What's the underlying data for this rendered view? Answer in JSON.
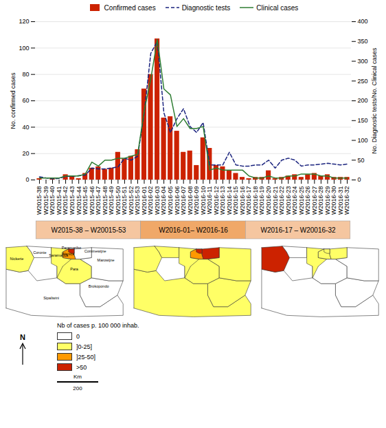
{
  "chart_data": [
    {
      "type": "bar",
      "categories": [
        "W2015-38",
        "W2015-39",
        "W2015-40",
        "W2015-41",
        "W2015-42",
        "W2015-43",
        "W2015-44",
        "W2015-45",
        "W2015-46",
        "W2015-47",
        "W2015-48",
        "W2015-49",
        "W2015-50",
        "W2015-51",
        "W2015-52",
        "W2015-53",
        "W2016-01",
        "W2016-02",
        "W2016-03",
        "W2016-04",
        "W2016-05",
        "W2016-06",
        "W2016-07",
        "W2016-08",
        "W2016-09",
        "W2016-10",
        "W2016-11",
        "W2016-12",
        "W2016-13",
        "W2016-14",
        "W2016-15",
        "W2016-16",
        "W2016-17",
        "W2016-18",
        "W2016-19",
        "W2016-20",
        "W2016-21",
        "W2016-22",
        "W2016-23",
        "W2016-24",
        "W2016-25",
        "W2016-26",
        "W2016-27",
        "W2016-28",
        "W2016-29",
        "W2016-30",
        "W2016-31",
        "W2016-32"
      ],
      "series": [
        {
          "name": "Confirmed cases",
          "type": "bar",
          "color": "#CC2200",
          "values": [
            1,
            0,
            1,
            0,
            4,
            3,
            1,
            5,
            9,
            10,
            8,
            9,
            21,
            16,
            18,
            23,
            69,
            80,
            107,
            47,
            48,
            37,
            21,
            22,
            11,
            32,
            24,
            11,
            10,
            7,
            5,
            2,
            1,
            2,
            2,
            7,
            1,
            2,
            3,
            4,
            2,
            4,
            5,
            3,
            4,
            2,
            2,
            2
          ]
        },
        {
          "name": "Diagnostic tests",
          "type": "line",
          "axis": "y2",
          "line_style": "dashed",
          "color": "#1a237e",
          "values": [
            8,
            5,
            3,
            4,
            9,
            9,
            11,
            12,
            30,
            28,
            28,
            30,
            33,
            55,
            50,
            60,
            170,
            320,
            350,
            170,
            120,
            155,
            180,
            135,
            120,
            145,
            38,
            38,
            38,
            70,
            38,
            35,
            35,
            38,
            38,
            50,
            30,
            50,
            55,
            50,
            35,
            38,
            38,
            40,
            42,
            40,
            38,
            40
          ]
        },
        {
          "name": "Clinical cases",
          "type": "line",
          "axis": "y2",
          "line_style": "solid",
          "color": "#2e7d32",
          "values": [
            5,
            5,
            5,
            5,
            10,
            10,
            10,
            15,
            45,
            35,
            50,
            50,
            55,
            55,
            60,
            65,
            175,
            255,
            355,
            230,
            215,
            135,
            155,
            130,
            130,
            135,
            25,
            30,
            25,
            25,
            25,
            25,
            10,
            5,
            5,
            10,
            5,
            5,
            10,
            10,
            15,
            15,
            15,
            10,
            10,
            5,
            5,
            5
          ]
        }
      ],
      "ylabel": "No. confirmed cases",
      "y2label": "No. Diagnostic tests/No. Clinical cases",
      "ylim": [
        0,
        120
      ],
      "yticks": [
        0,
        20,
        40,
        60,
        80,
        100,
        120
      ],
      "y2lim": [
        0,
        400
      ],
      "y2ticks": [
        0,
        50,
        100,
        150,
        200,
        250,
        300,
        350,
        400
      ],
      "grid": true,
      "legend": "top",
      "periods": [
        {
          "label": "W2015-38 – W20015-53",
          "start": "W2015-38",
          "end": "W2015-53",
          "color": "#F5C6A0"
        },
        {
          "label": "W2016-01– W2016-16",
          "start": "W2016-01",
          "end": "W2016-16",
          "color": "#F0A868"
        },
        {
          "label": "W2016-17 – W20016-32",
          "start": "W2016-17",
          "end": "W2016-32",
          "color": "#F5C6A0"
        }
      ]
    },
    {
      "type": "map",
      "xlim": [
        -58.2,
        -53.85
      ],
      "ylim": [
        3.5,
        6.1
      ],
      "tick_labels": false,
      "districts": [
        {
          "name": "Sipaliwini",
          "polygon": [
            [
              -58.07,
              3.85
            ],
            [
              -57.2,
              3.6
            ],
            [
              -56.0,
              3.55
            ],
            [
              -54.0,
              3.6
            ],
            [
              -54.0,
              4.0
            ],
            [
              -54.2,
              4.3
            ],
            [
              -54.8,
              3.9
            ],
            [
              -55.3,
              3.9
            ],
            [
              -55.5,
              4.3
            ],
            [
              -55.5,
              4.7
            ],
            [
              -56.0,
              4.7
            ],
            [
              -56.3,
              4.9
            ],
            [
              -57.0,
              4.8
            ],
            [
              -57.3,
              5.15
            ],
            [
              -57.6,
              5.1
            ],
            [
              -58.07,
              5.2
            ]
          ]
        },
        {
          "name": "Brokopondo",
          "polygon": [
            [
              -55.1,
              5.3
            ],
            [
              -55.1,
              4.9
            ],
            [
              -54.5,
              4.8
            ],
            [
              -54.0,
              4.8
            ],
            [
              -54.2,
              4.3
            ],
            [
              -54.8,
              3.9
            ],
            [
              -55.3,
              3.9
            ],
            [
              -55.5,
              4.3
            ],
            [
              -55.5,
              4.7
            ],
            [
              -55.1,
              4.9
            ]
          ]
        },
        {
          "name": "Para",
          "polygon": [
            [
              -56.3,
              5.3
            ],
            [
              -56.1,
              5.3
            ],
            [
              -56.1,
              5.6
            ],
            [
              -55.8,
              5.55
            ],
            [
              -55.65,
              5.55
            ],
            [
              -55.5,
              5.55
            ],
            [
              -55.1,
              5.3
            ],
            [
              -55.1,
              4.9
            ],
            [
              -55.5,
              4.7
            ],
            [
              -56.0,
              4.7
            ],
            [
              -56.3,
              4.9
            ]
          ]
        },
        {
          "name": "Marowijne",
          "polygon": [
            [
              -55.1,
              5.95
            ],
            [
              -54.0,
              5.9
            ],
            [
              -54.0,
              4.8
            ],
            [
              -54.5,
              4.8
            ],
            [
              -55.1,
              4.9
            ],
            [
              -55.1,
              5.3
            ],
            [
              -55.5,
              5.55
            ],
            [
              -55.1,
              5.6
            ],
            [
              -55.1,
              5.95
            ]
          ]
        },
        {
          "name": "Nickerie",
          "polygon": [
            [
              -58.07,
              5.95
            ],
            [
              -57.35,
              6.0
            ],
            [
              -57.2,
              5.8
            ],
            [
              -57.1,
              5.6
            ],
            [
              -57.3,
              5.15
            ],
            [
              -57.6,
              5.1
            ],
            [
              -58.07,
              5.2
            ],
            [
              -58.07,
              5.95
            ]
          ]
        },
        {
          "name": "Coronie",
          "polygon": [
            [
              -57.35,
              6.0
            ],
            [
              -56.5,
              5.95
            ],
            [
              -56.5,
              5.6
            ],
            [
              -57.1,
              5.6
            ],
            [
              -57.2,
              5.8
            ],
            [
              -57.35,
              6.0
            ]
          ]
        },
        {
          "name": "Saramacca",
          "polygon": [
            [
              -56.5,
              5.95
            ],
            [
              -55.9,
              5.9
            ],
            [
              -56.1,
              5.8
            ],
            [
              -56.1,
              5.6
            ],
            [
              -55.8,
              5.55
            ],
            [
              -56.1,
              5.3
            ],
            [
              -56.3,
              4.9
            ],
            [
              -56.3,
              5.3
            ],
            [
              -56.5,
              5.4
            ],
            [
              -56.5,
              5.95
            ]
          ]
        },
        {
          "name": "Wanica",
          "polygon": [
            [
              -55.9,
              5.9
            ],
            [
              -55.7,
              5.9
            ],
            [
              -55.7,
              5.7
            ],
            [
              -55.65,
              5.55
            ],
            [
              -55.8,
              5.55
            ],
            [
              -56.1,
              5.6
            ],
            [
              -56.1,
              5.8
            ],
            [
              -55.9,
              5.9
            ]
          ]
        },
        {
          "name": "Commewijne",
          "polygon": [
            [
              -55.7,
              5.9
            ],
            [
              -55.1,
              5.95
            ],
            [
              -55.1,
              5.6
            ],
            [
              -55.5,
              5.55
            ],
            [
              -55.65,
              5.55
            ],
            [
              -55.7,
              5.7
            ],
            [
              -55.7,
              5.9
            ]
          ]
        },
        {
          "name": "Paramaribo",
          "polygon": [
            [
              -55.9,
              5.9
            ],
            [
              -55.75,
              5.9
            ],
            [
              -55.7,
              5.9
            ],
            [
              -55.7,
              5.75
            ],
            [
              -55.8,
              5.75
            ],
            [
              -55.9,
              5.8
            ],
            [
              -55.9,
              5.9
            ]
          ]
        }
      ],
      "label_positions": [
        {
          "text": "Nickerie",
          "at": [
            -57.7,
            5.55
          ]
        },
        {
          "text": "Coronie",
          "at": [
            -56.9,
            5.78
          ]
        },
        {
          "text": "Saramacca",
          "at": [
            -56.25,
            5.68
          ]
        },
        {
          "text": "Paramaribo",
          "at": [
            -55.8,
            5.95
          ]
        },
        {
          "text": "Wanica",
          "at": [
            -55.92,
            5.73
          ]
        },
        {
          "text": "Commewijne",
          "at": [
            -55.35,
            5.82
          ]
        },
        {
          "text": "Marowijne",
          "at": [
            -54.6,
            5.5
          ]
        },
        {
          "text": "Para",
          "at": [
            -55.7,
            5.2
          ]
        },
        {
          "text": "Brokopondo",
          "at": [
            -54.85,
            4.6
          ]
        },
        {
          "text": "Sipaliwini",
          "at": [
            -56.5,
            4.2
          ]
        }
      ],
      "panels": [
        {
          "labels": true,
          "colors": {
            "Nickerie": "#FFFF66",
            "Coronie": "#FFFFFF",
            "Saramacca": "#FFFF66",
            "Paramaribo": "#CC2200",
            "Wanica": "#FF9900",
            "Commewijne": "#FFFFFF",
            "Marowijne": "#FFFFFF",
            "Para": "#FFFF66",
            "Brokopondo": "#FFFFFF",
            "Sipaliwini": "#FFFFFF"
          }
        },
        {
          "labels": false,
          "colors": {
            "Nickerie": "#FFFF66",
            "Coronie": "#FFFF66",
            "Saramacca": "#FFFF66",
            "Paramaribo": "#CC2200",
            "Wanica": "#FF9900",
            "Commewijne": "#CC2200",
            "Marowijne": "#FFFF66",
            "Para": "#FFFF66",
            "Brokopondo": "#FFFF66",
            "Sipaliwini": "#FFFF66"
          }
        },
        {
          "labels": false,
          "colors": {
            "Nickerie": "#CC2200",
            "Coronie": "#FFFFFF",
            "Saramacca": "#FFFF66",
            "Paramaribo": "#FFFF66",
            "Wanica": "#FFFF66",
            "Commewijne": "#FFFF66",
            "Marowijne": "#FFFFFF",
            "Para": "#FFFFFF",
            "Brokopondo": "#FFFFFF",
            "Sipaliwini": "#FFFFFF"
          }
        }
      ],
      "legend_title": "Nb of cases p. 100 000 inhab.",
      "legend_items": [
        {
          "label": "0",
          "color": "#FFFFFF"
        },
        {
          "label": "]0-25]",
          "color": "#FFFF66"
        },
        {
          "label": "]25-50]",
          "color": "#FF9900"
        },
        {
          "label": ">50",
          "color": "#CC2200"
        }
      ],
      "north_label": "N",
      "scale_bar": {
        "value": 200,
        "unit": "Km"
      }
    }
  ]
}
